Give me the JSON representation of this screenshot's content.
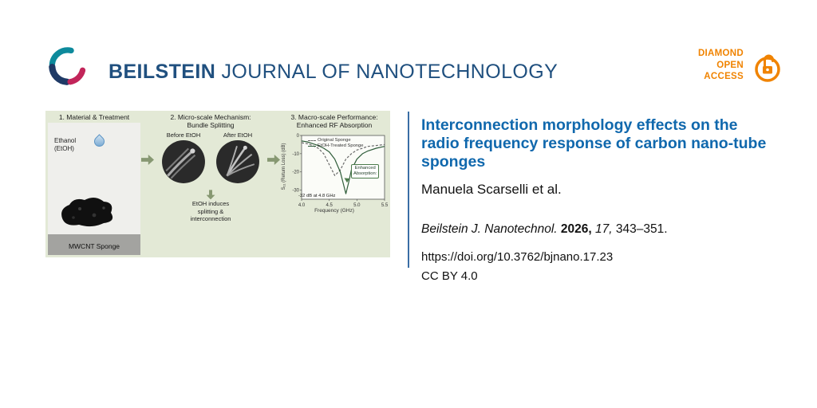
{
  "header": {
    "journal_name_bold": "BEILSTEIN",
    "journal_name_rest": "JOURNAL OF NANOTECHNOLOGY",
    "open_access_badge": {
      "line1": "DIAMOND",
      "line2": "OPEN",
      "line3": "ACCESS"
    }
  },
  "figure": {
    "panel1": {
      "title": "1. Material & Treatment",
      "ethanol_line1": "Ethanol",
      "ethanol_line2": "(EtOH)",
      "sponge_label": "MWCNT Sponge"
    },
    "panel2": {
      "title_line1": "2. Micro-scale Mechanism:",
      "title_line2": "Bundle Splitting",
      "before_label": "Before EtOH",
      "after_label": "After EtOH",
      "caption_line1": "EtOH induces",
      "caption_line2": "splitting &",
      "caption_line3": "interconnection"
    },
    "panel3": {
      "title_line1": "3. Macro-scale Performance:",
      "title_line2": "Enhanced RF Absorption"
    }
  },
  "chart_data": {
    "type": "line",
    "title": "",
    "xlabel": "Frequency (GHz)",
    "ylabel": "S₁₁ (Return Loss) (dB)",
    "xlim": [
      4.0,
      5.5
    ],
    "ylim": [
      -35,
      0
    ],
    "x_ticks": [
      4.0,
      4.5,
      5.0,
      5.5
    ],
    "y_ticks": [
      0,
      -10,
      -20,
      -30
    ],
    "grid": false,
    "legend_position": "top",
    "series": [
      {
        "name": "Original Sponge",
        "style": "dashed",
        "color": "#6a6a6a",
        "points": [
          [
            4.0,
            -4
          ],
          [
            4.1,
            -4.5
          ],
          [
            4.2,
            -5.5
          ],
          [
            4.3,
            -7
          ],
          [
            4.4,
            -10
          ],
          [
            4.5,
            -16
          ],
          [
            4.6,
            -22
          ],
          [
            4.7,
            -19
          ],
          [
            4.8,
            -13
          ],
          [
            4.9,
            -10
          ],
          [
            5.0,
            -8
          ],
          [
            5.1,
            -7
          ],
          [
            5.2,
            -6
          ],
          [
            5.35,
            -5.5
          ],
          [
            5.5,
            -5
          ]
        ]
      },
      {
        "name": "EtOH-Treated Sponge",
        "style": "solid",
        "color": "#2f5d3a",
        "points": [
          [
            4.0,
            -3
          ],
          [
            4.1,
            -3.5
          ],
          [
            4.2,
            -4.5
          ],
          [
            4.3,
            -5.5
          ],
          [
            4.4,
            -7
          ],
          [
            4.5,
            -9
          ],
          [
            4.6,
            -13
          ],
          [
            4.7,
            -20
          ],
          [
            4.75,
            -26
          ],
          [
            4.8,
            -32
          ],
          [
            4.85,
            -26
          ],
          [
            4.9,
            -19
          ],
          [
            5.0,
            -13
          ],
          [
            5.1,
            -10
          ],
          [
            5.2,
            -8.5
          ],
          [
            5.35,
            -7
          ],
          [
            5.5,
            -6
          ]
        ]
      }
    ],
    "annotation_label_line1": "Enhanced",
    "annotation_label_line2": "Absorption:",
    "annotation_value": "-32 dB at 4.8 GHz"
  },
  "article": {
    "title": "Interconnection morphology effects on the radio frequency response of carbon nano-tube sponges",
    "authors": "Manuela Scarselli et al.",
    "citation": {
      "journal": "Beilstein J. Nanotechnol.",
      "year": "2026,",
      "volume": "17,",
      "pages": "343–351."
    },
    "doi": "https://doi.org/10.3762/bjnano.17.23",
    "license": "CC BY 4.0"
  },
  "colors": {
    "brand_blue": "#20507f",
    "title_blue": "#1068ad",
    "open_access_orange": "#f08300",
    "figure_background": "#e3e9d6",
    "arrow_green": "#879872",
    "divider_blue": "#3a6ea5"
  }
}
